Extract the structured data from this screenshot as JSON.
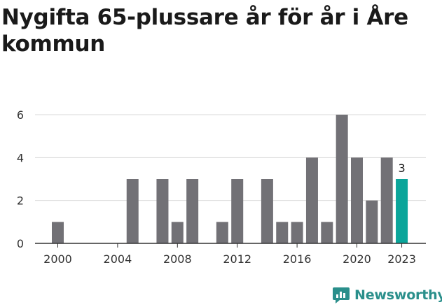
{
  "title": "Nygifta 65-plussare år för år i Åre kommun",
  "brand": {
    "name": "Newsworthy",
    "icon": "newsworthy-logo-icon",
    "color": "#2a8f8b"
  },
  "colors": {
    "bar": "#727176",
    "highlight": "#0aa59a",
    "grid": "#d9d9d9",
    "axis": "#333333"
  },
  "chart_data": {
    "type": "bar",
    "categories": [
      2000,
      2001,
      2002,
      2003,
      2004,
      2005,
      2006,
      2007,
      2008,
      2009,
      2010,
      2011,
      2012,
      2013,
      2014,
      2015,
      2016,
      2017,
      2018,
      2019,
      2020,
      2021,
      2022,
      2023
    ],
    "values": [
      1,
      0,
      0,
      0,
      0,
      3,
      0,
      3,
      1,
      3,
      0,
      1,
      3,
      0,
      3,
      1,
      1,
      4,
      1,
      6,
      4,
      2,
      4,
      3
    ],
    "highlight_index": 23,
    "data_labels": [
      {
        "category": 2023,
        "text": "3"
      }
    ],
    "x_tick_labels": [
      "2000",
      "2004",
      "2008",
      "2012",
      "2016",
      "2020",
      "2023"
    ],
    "y_ticks": [
      0,
      2,
      4,
      6
    ],
    "ylim": [
      0,
      6
    ],
    "grid": true,
    "legend": "none"
  }
}
